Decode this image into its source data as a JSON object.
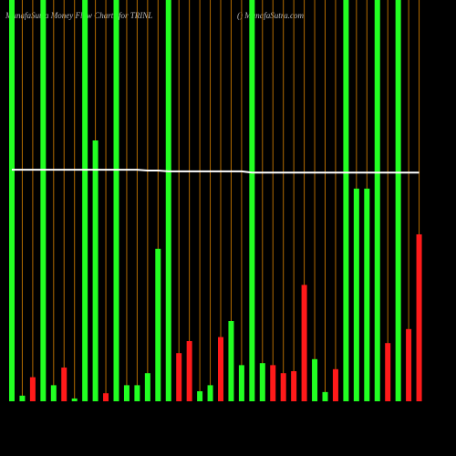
{
  "chart_data": {
    "type": "bar",
    "title": "MunafaSutra  Money Flow  Charts for TRINL",
    "subtitle": "() MunafaSutra.com",
    "categories": [
      null,
      null,
      null,
      null,
      null,
      null,
      null,
      null,
      null,
      null,
      null,
      null,
      null,
      null,
      null,
      null,
      null,
      null,
      null,
      null,
      null,
      null,
      null,
      null,
      null,
      null,
      null,
      null,
      null,
      null,
      null,
      null,
      null,
      null,
      null,
      null,
      null,
      null,
      null,
      null
    ],
    "series": [
      {
        "values": [
          100,
          1.4,
          6,
          100,
          4,
          8.4,
          0.7,
          100,
          65,
          2,
          100,
          4,
          4,
          7,
          38,
          100,
          12,
          15,
          2.5,
          4,
          16,
          20,
          9,
          100,
          9.5,
          9,
          7,
          7.5,
          29,
          10.5,
          2.3,
          8,
          100,
          53,
          53,
          100,
          14.5,
          100,
          18,
          41.6
        ],
        "colors": [
          "#22ff22",
          "#22ff22",
          "#ff1a1a",
          "#22ff22",
          "#22ff22",
          "#ff1a1a",
          "#22ff22",
          "#22ff22",
          "#22ff22",
          "#ff1a1a",
          "#22ff22",
          "#22ff22",
          "#22ff22",
          "#22ff22",
          "#22ff22",
          "#22ff22",
          "#ff1a1a",
          "#ff1a1a",
          "#22ff22",
          "#22ff22",
          "#ff1a1a",
          "#22ff22",
          "#22ff22",
          "#22ff22",
          "#22ff22",
          "#ff1a1a",
          "#ff1a1a",
          "#ff1a1a",
          "#ff1a1a",
          "#22ff22",
          "#22ff22",
          "#ff1a1a",
          "#22ff22",
          "#22ff22",
          "#22ff22",
          "#22ff22",
          "#ff1a1a",
          "#22ff22",
          "#ff1a1a",
          "#ff1a1a"
        ]
      },
      {
        "type": "line",
        "color": "#ffffff",
        "values": [
          57.7,
          57.7,
          57.7,
          57.7,
          57.7,
          57.7,
          57.7,
          57.7,
          57.7,
          57.7,
          57.7,
          57.7,
          57.7,
          57.5,
          57.5,
          57.3,
          57.3,
          57.3,
          57.3,
          57.3,
          57.3,
          57.3,
          57.3,
          57.0,
          57.0,
          57.0,
          57.0,
          57.0,
          57.0,
          57.0,
          57.0,
          57.0,
          57.0,
          57.0,
          57.0,
          57.0,
          57.0,
          57.0,
          57.0,
          57.0
        ]
      }
    ],
    "ylim": [
      0,
      100
    ],
    "category_line_color": "#b36b00"
  }
}
